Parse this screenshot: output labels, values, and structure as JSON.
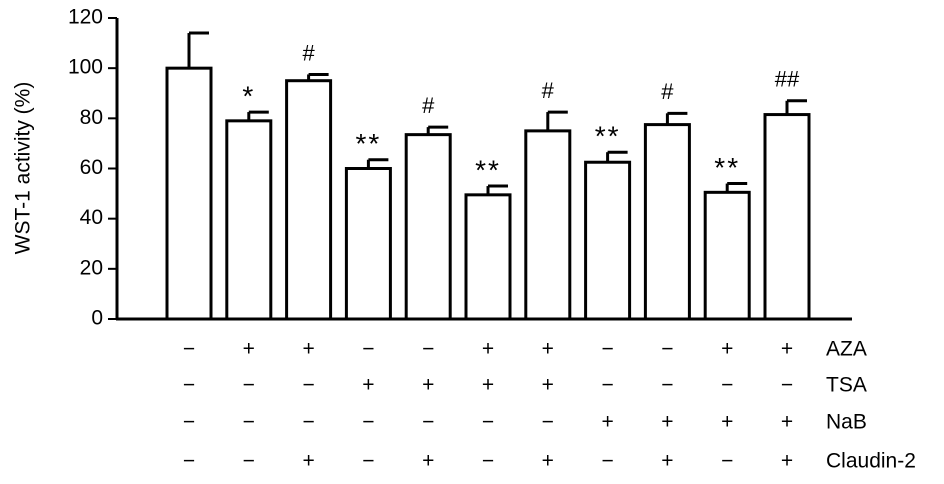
{
  "chart_data": {
    "type": "bar",
    "y_label": "WST-1 activity (%)",
    "values": [
      100,
      79,
      95,
      60,
      73.5,
      49.5,
      75,
      62.5,
      77.5,
      50.5,
      81.5
    ],
    "errors": [
      14,
      3.5,
      2.5,
      3.5,
      3,
      3.5,
      7.5,
      4,
      4.5,
      3.5,
      5.5
    ],
    "annotations": [
      null,
      "*",
      "#",
      "**",
      "#",
      "**",
      "#",
      "**",
      "#",
      "**",
      "##"
    ],
    "color": "#ffffff",
    "ylim": [
      0,
      120
    ],
    "yticks": [
      0,
      20,
      40,
      60,
      80,
      100,
      120
    ],
    "treatments": [
      {
        "name": "AZA",
        "signs": [
          "−",
          "+",
          "+",
          "−",
          "−",
          "+",
          "+",
          "−",
          "−",
          "+",
          "+"
        ]
      },
      {
        "name": "TSA",
        "signs": [
          "−",
          "−",
          "−",
          "+",
          "+",
          "+",
          "+",
          "−",
          "−",
          "−",
          "−"
        ]
      },
      {
        "name": "NaB",
        "signs": [
          "−",
          "−",
          "−",
          "−",
          "−",
          "−",
          "−",
          "+",
          "+",
          "+",
          "+"
        ]
      },
      {
        "name": "Claudin-2",
        "signs": [
          "−",
          "−",
          "+",
          "−",
          "+",
          "−",
          "+",
          "−",
          "+",
          "−",
          "+"
        ]
      }
    ]
  }
}
